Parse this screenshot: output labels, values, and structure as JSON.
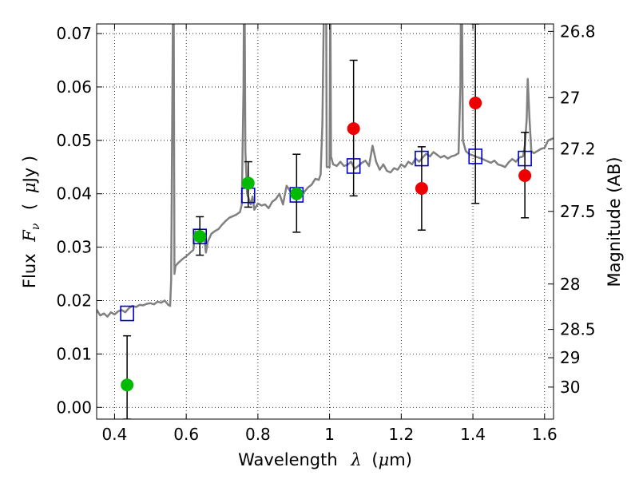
{
  "chart_data": {
    "type": "scatter",
    "xlabel": "Wavelength",
    "xlabel_symbol": "λ",
    "xlabel_unit_open": "(",
    "xlabel_unit_mu": "μ",
    "xlabel_unit_rest": "m)",
    "ylabel": "Flux",
    "ylabel_symbol": "F",
    "ylabel_subscript": "ν",
    "ylabel_unit_open": "(",
    "ylabel_unit_mu": "μ",
    "ylabel_unit_rest": "Jy )",
    "y2label": "Magnitude (AB)",
    "xlim": [
      0.35,
      1.625
    ],
    "ylim": [
      -0.0022,
      0.0718
    ],
    "x_ticks": [
      0.4,
      0.6,
      0.8,
      1.0,
      1.2,
      1.4,
      1.6
    ],
    "x_tick_labels": [
      "0.4",
      "0.6",
      "0.8",
      "1",
      "1.2",
      "1.4",
      "1.6"
    ],
    "y_ticks": [
      0.0,
      0.01,
      0.02,
      0.03,
      0.04,
      0.05,
      0.06,
      0.07
    ],
    "y_tick_labels": [
      "0.00",
      "0.01",
      "0.02",
      "0.03",
      "0.04",
      "0.05",
      "0.06",
      "0.07"
    ],
    "y2_ticks": [
      {
        "label": "26.8",
        "flux": 0.0704
      },
      {
        "label": "27",
        "flux": 0.058
      },
      {
        "label": "27.2",
        "flux": 0.0484
      },
      {
        "label": "27.5",
        "flux": 0.0367
      },
      {
        "label": "28",
        "flux": 0.0231
      },
      {
        "label": "28.5",
        "flux": 0.0146
      },
      {
        "label": "29",
        "flux": 0.0093
      },
      {
        "label": "30",
        "flux": 0.0038
      }
    ],
    "grid": true,
    "series": [
      {
        "kind": "template_spectrum",
        "color": "#808080",
        "points": [
          [
            0.35,
            0.0183
          ],
          [
            0.36,
            0.0172
          ],
          [
            0.37,
            0.0176
          ],
          [
            0.38,
            0.017
          ],
          [
            0.39,
            0.0178
          ],
          [
            0.4,
            0.0174
          ],
          [
            0.41,
            0.018
          ],
          [
            0.42,
            0.0182
          ],
          [
            0.43,
            0.0178
          ],
          [
            0.44,
            0.0186
          ],
          [
            0.45,
            0.019
          ],
          [
            0.46,
            0.0188
          ],
          [
            0.47,
            0.0192
          ],
          [
            0.48,
            0.0191
          ],
          [
            0.49,
            0.0194
          ],
          [
            0.5,
            0.0195
          ],
          [
            0.51,
            0.0193
          ],
          [
            0.52,
            0.0198
          ],
          [
            0.53,
            0.0196
          ],
          [
            0.54,
            0.02
          ],
          [
            0.55,
            0.0192
          ],
          [
            0.555,
            0.019
          ],
          [
            0.558,
            0.024
          ],
          [
            0.562,
            0.065
          ],
          [
            0.5645,
            0.09
          ],
          [
            0.567,
            0.025
          ],
          [
            0.57,
            0.0265
          ],
          [
            0.58,
            0.0272
          ],
          [
            0.59,
            0.0278
          ],
          [
            0.6,
            0.0283
          ],
          [
            0.61,
            0.0289
          ],
          [
            0.62,
            0.0295
          ],
          [
            0.625,
            0.033
          ],
          [
            0.63,
            0.032
          ],
          [
            0.64,
            0.0313
          ],
          [
            0.65,
            0.032
          ],
          [
            0.655,
            0.029
          ],
          [
            0.66,
            0.031
          ],
          [
            0.67,
            0.0325
          ],
          [
            0.68,
            0.033
          ],
          [
            0.69,
            0.0334
          ],
          [
            0.7,
            0.0342
          ],
          [
            0.71,
            0.0349
          ],
          [
            0.72,
            0.0355
          ],
          [
            0.73,
            0.0358
          ],
          [
            0.74,
            0.0361
          ],
          [
            0.75,
            0.0366
          ],
          [
            0.755,
            0.038
          ],
          [
            0.76,
            0.06
          ],
          [
            0.762,
            0.09
          ],
          [
            0.765,
            0.048
          ],
          [
            0.77,
            0.04
          ],
          [
            0.78,
            0.038
          ],
          [
            0.785,
            0.0395
          ],
          [
            0.79,
            0.037
          ],
          [
            0.8,
            0.0382
          ],
          [
            0.81,
            0.0378
          ],
          [
            0.82,
            0.038
          ],
          [
            0.83,
            0.0373
          ],
          [
            0.84,
            0.0385
          ],
          [
            0.85,
            0.039
          ],
          [
            0.86,
            0.04
          ],
          [
            0.87,
            0.038
          ],
          [
            0.88,
            0.0415
          ],
          [
            0.89,
            0.0405
          ],
          [
            0.9,
            0.0395
          ],
          [
            0.91,
            0.04
          ],
          [
            0.92,
            0.0398
          ],
          [
            0.93,
            0.0404
          ],
          [
            0.94,
            0.0412
          ],
          [
            0.95,
            0.0417
          ],
          [
            0.96,
            0.0428
          ],
          [
            0.97,
            0.0426
          ],
          [
            0.975,
            0.0436
          ],
          [
            0.98,
            0.053
          ],
          [
            0.985,
            0.08
          ],
          [
            0.99,
            0.09
          ],
          [
            0.992,
            0.045
          ],
          [
            1.0,
            0.045
          ],
          [
            1.002,
            0.08
          ],
          [
            1.004,
            0.047
          ],
          [
            1.01,
            0.0455
          ],
          [
            1.02,
            0.0452
          ],
          [
            1.03,
            0.046
          ],
          [
            1.04,
            0.0452
          ],
          [
            1.05,
            0.0454
          ],
          [
            1.06,
            0.046
          ],
          [
            1.07,
            0.0447
          ],
          [
            1.08,
            0.0452
          ],
          [
            1.09,
            0.0458
          ],
          [
            1.1,
            0.0462
          ],
          [
            1.11,
            0.0452
          ],
          [
            1.12,
            0.049
          ],
          [
            1.13,
            0.046
          ],
          [
            1.14,
            0.0445
          ],
          [
            1.15,
            0.0455
          ],
          [
            1.16,
            0.0443
          ],
          [
            1.17,
            0.044
          ],
          [
            1.18,
            0.0448
          ],
          [
            1.19,
            0.0445
          ],
          [
            1.2,
            0.0455
          ],
          [
            1.21,
            0.045
          ],
          [
            1.22,
            0.046
          ],
          [
            1.23,
            0.0455
          ],
          [
            1.24,
            0.0466
          ],
          [
            1.25,
            0.046
          ],
          [
            1.26,
            0.0468
          ],
          [
            1.27,
            0.0475
          ],
          [
            1.28,
            0.047
          ],
          [
            1.29,
            0.0478
          ],
          [
            1.3,
            0.0473
          ],
          [
            1.31,
            0.0468
          ],
          [
            1.32,
            0.0471
          ],
          [
            1.33,
            0.0466
          ],
          [
            1.34,
            0.047
          ],
          [
            1.35,
            0.0472
          ],
          [
            1.36,
            0.0476
          ],
          [
            1.365,
            0.06
          ],
          [
            1.368,
            0.09
          ],
          [
            1.372,
            0.05
          ],
          [
            1.38,
            0.048
          ],
          [
            1.39,
            0.0474
          ],
          [
            1.4,
            0.0472
          ],
          [
            1.41,
            0.0469
          ],
          [
            1.42,
            0.0467
          ],
          [
            1.43,
            0.0464
          ],
          [
            1.44,
            0.0461
          ],
          [
            1.45,
            0.0458
          ],
          [
            1.46,
            0.0462
          ],
          [
            1.47,
            0.0455
          ],
          [
            1.48,
            0.0453
          ],
          [
            1.49,
            0.045
          ],
          [
            1.5,
            0.0459
          ],
          [
            1.51,
            0.0465
          ],
          [
            1.52,
            0.046
          ],
          [
            1.53,
            0.0468
          ],
          [
            1.54,
            0.047
          ],
          [
            1.545,
            0.049
          ],
          [
            1.55,
            0.054
          ],
          [
            1.553,
            0.0615
          ],
          [
            1.558,
            0.054
          ],
          [
            1.563,
            0.048
          ],
          [
            1.57,
            0.0476
          ],
          [
            1.58,
            0.048
          ],
          [
            1.59,
            0.0484
          ],
          [
            1.6,
            0.0486
          ],
          [
            1.61,
            0.05
          ],
          [
            1.625,
            0.0504
          ]
        ]
      },
      {
        "kind": "model_photometry",
        "marker": "open-square",
        "color": "#0000cc",
        "points": [
          [
            0.435,
            0.0176
          ],
          [
            0.638,
            0.032
          ],
          [
            0.773,
            0.0397
          ],
          [
            0.908,
            0.0398
          ],
          [
            1.067,
            0.0452
          ],
          [
            1.257,
            0.0466
          ],
          [
            1.407,
            0.047
          ],
          [
            1.545,
            0.0466
          ]
        ]
      },
      {
        "kind": "observed_detection",
        "marker": "filled-circle",
        "color": "#00bb00",
        "points": [
          {
            "x": 0.435,
            "y": 0.0042,
            "yerr_low": -0.0022,
            "yerr_high": 0.0134
          },
          {
            "x": 0.638,
            "y": 0.032,
            "yerr_low": 0.0285,
            "yerr_high": 0.0357
          },
          {
            "x": 0.773,
            "y": 0.042,
            "yerr_low": 0.0375,
            "yerr_high": 0.046
          },
          {
            "x": 0.908,
            "y": 0.04,
            "yerr_low": 0.0328,
            "yerr_high": 0.0474
          }
        ]
      },
      {
        "kind": "observed_other",
        "marker": "filled-circle",
        "color": "#ee0000",
        "points": [
          {
            "x": 1.067,
            "y": 0.0522,
            "yerr_low": 0.0396,
            "yerr_high": 0.065
          },
          {
            "x": 1.257,
            "y": 0.041,
            "yerr_low": 0.0332,
            "yerr_high": 0.0488
          },
          {
            "x": 1.407,
            "y": 0.057,
            "yerr_low": 0.0382,
            "yerr_high": 0.0718
          },
          {
            "x": 1.545,
            "y": 0.0434,
            "yerr_low": 0.0355,
            "yerr_high": 0.0515
          }
        ]
      }
    ]
  }
}
